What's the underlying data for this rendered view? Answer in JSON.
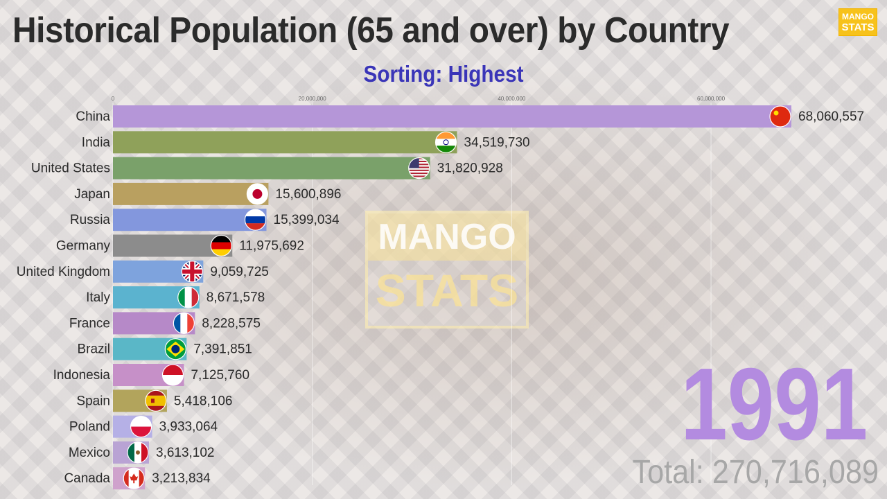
{
  "title": "Historical Population (65 and over) by Country",
  "subtitle": "Sorting: Highest",
  "logo": {
    "line1": "MANGO",
    "line2": "STATS"
  },
  "watermark": {
    "line1": "MANGO",
    "line2": "STATS"
  },
  "year": "1991",
  "total_label": "Total: 270,716,089",
  "chart_data": {
    "type": "bar",
    "orientation": "horizontal",
    "xlim": [
      0,
      68060557
    ],
    "ticks": [
      {
        "value": 0,
        "label": "0"
      },
      {
        "value": 20000000,
        "label": "20,000,000"
      },
      {
        "value": 40000000,
        "label": "40,000,000"
      },
      {
        "value": 60000000,
        "label": "60,000,000"
      }
    ],
    "grid": true,
    "categories": [
      "China",
      "India",
      "United States",
      "Japan",
      "Russia",
      "Germany",
      "United Kingdom",
      "Italy",
      "France",
      "Brazil",
      "Indonesia",
      "Spain",
      "Poland",
      "Mexico",
      "Canada"
    ],
    "values": [
      68060557,
      34519730,
      31820928,
      15600896,
      15399034,
      11975692,
      9059725,
      8671578,
      8228575,
      7391851,
      7125760,
      5418106,
      3933064,
      3613102,
      3213834
    ],
    "value_labels": [
      "68,060,557",
      "34,519,730",
      "31,820,928",
      "15,600,896",
      "15,399,034",
      "11,975,692",
      "9,059,725",
      "8,671,578",
      "8,228,575",
      "7,391,851",
      "7,125,760",
      "5,418,106",
      "3,933,064",
      "3,613,102",
      "3,213,834"
    ],
    "colors": [
      "#b596d8",
      "#8fa15a",
      "#7aa16a",
      "#b9a060",
      "#8397dd",
      "#8c8c8c",
      "#7ea3dd",
      "#5bb3cf",
      "#b689c8",
      "#5ab7c7",
      "#c690c8",
      "#b2a45c",
      "#b5b0e6",
      "#b9a3d4",
      "#cfa2cc"
    ],
    "flags": [
      "china-flag",
      "india-flag",
      "united-states-flag",
      "japan-flag",
      "russia-flag",
      "germany-flag",
      "united-kingdom-flag",
      "italy-flag",
      "france-flag",
      "brazil-flag",
      "indonesia-flag",
      "spain-flag",
      "poland-flag",
      "mexico-flag",
      "canada-flag"
    ]
  }
}
